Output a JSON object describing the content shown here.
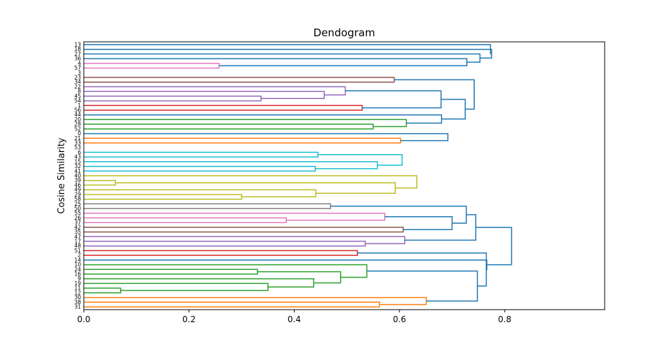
{
  "chart_data": {
    "type": "dendrogram",
    "orientation": "right",
    "title": "Dendogram",
    "xlabel": "",
    "ylabel": "Cosine Similarity",
    "xlim": [
      0,
      0.99
    ],
    "xticks": [
      0.0,
      0.2,
      0.4,
      0.6,
      0.8
    ],
    "xtick_labels": [
      "0.0",
      "0.2",
      "0.4",
      "0.6",
      "0.8"
    ],
    "grid": false,
    "leaves": [
      "13",
      "18",
      "27",
      "36",
      "4",
      "57",
      "3",
      "23",
      "34",
      "22",
      "8",
      "45",
      "54",
      "1",
      "56",
      "44",
      "20",
      "28",
      "52",
      "0",
      "21",
      "33",
      "53",
      "6",
      "43",
      "15",
      "32",
      "41",
      "40",
      "39",
      "46",
      "49",
      "29",
      "58",
      "25",
      "50",
      "55",
      "26",
      "37",
      "42",
      "35",
      "47",
      "17",
      "48",
      "51",
      "2",
      "14",
      "10",
      "24",
      "16",
      "9",
      "19",
      "11",
      "12",
      "30",
      "38",
      "31"
    ],
    "colors": {
      "above": "#1f77b4",
      "c1": "#ff7f0e",
      "c2": "#2ca02c",
      "c3": "#d62728",
      "c4": "#9467bd",
      "c5": "#8c564b",
      "c6": "#e377c2",
      "c7": "#7f7f7f",
      "c8": "#bcbd22",
      "c9": "#17becf"
    },
    "merges": [
      {
        "a": "L4",
        "b": "L5",
        "h": 0.257,
        "c": "c6",
        "id": "A"
      },
      {
        "a": "L3",
        "b": "A",
        "h": 0.728,
        "c": "above",
        "id": "B"
      },
      {
        "a": "L2",
        "b": "B",
        "h": 0.753,
        "c": "above",
        "id": "C"
      },
      {
        "a": "L1",
        "b": "C",
        "h": 0.775,
        "c": "above",
        "id": "D"
      },
      {
        "a": "L0",
        "b": "D",
        "h": 0.773,
        "c": "above",
        "id": "E"
      },
      {
        "a": "L7",
        "b": "L8",
        "h": 0.59,
        "c": "c5",
        "id": "F"
      },
      {
        "a": "L11",
        "b": "L12",
        "h": 0.337,
        "c": "c4",
        "id": "G"
      },
      {
        "a": "L10",
        "b": "G",
        "h": 0.457,
        "c": "c4",
        "id": "H"
      },
      {
        "a": "L9",
        "b": "H",
        "h": 0.497,
        "c": "c4",
        "id": "I"
      },
      {
        "a": "L13",
        "b": "L14",
        "h": 0.529,
        "c": "c3",
        "id": "J"
      },
      {
        "a": "I",
        "b": "J",
        "h": 0.679,
        "c": "above",
        "id": "K"
      },
      {
        "a": "L17",
        "b": "L18",
        "h": 0.55,
        "c": "c2",
        "id": "L"
      },
      {
        "a": "L16",
        "b": "L",
        "h": 0.613,
        "c": "c2",
        "id": "M"
      },
      {
        "a": "L15",
        "b": "M",
        "h": 0.68,
        "c": "above",
        "id": "N"
      },
      {
        "a": "K",
        "b": "N",
        "h": 0.725,
        "c": "above",
        "id": "O"
      },
      {
        "a": "F",
        "b": "O",
        "h": 0.742,
        "c": "above",
        "id": "P"
      },
      {
        "a": "L20",
        "b": "L21",
        "h": 0.602,
        "c": "c1",
        "id": "Q"
      },
      {
        "a": "L19",
        "b": "Q",
        "h": 0.692,
        "c": "above",
        "id": "R"
      },
      {
        "a": "L23",
        "b": "L24",
        "h": 0.445,
        "c": "c9",
        "id": "S"
      },
      {
        "a": "L26",
        "b": "L27",
        "h": 0.44,
        "c": "c9",
        "id": "T"
      },
      {
        "a": "L25",
        "b": "T",
        "h": 0.558,
        "c": "c9",
        "id": "U"
      },
      {
        "a": "S",
        "b": "U",
        "h": 0.605,
        "c": "c9",
        "id": "V"
      },
      {
        "a": "L29",
        "b": "L30",
        "h": 0.06,
        "c": "c8",
        "id": "W"
      },
      {
        "a": "L32",
        "b": "L33",
        "h": 0.3,
        "c": "c8",
        "id": "X"
      },
      {
        "a": "L31",
        "b": "X",
        "h": 0.441,
        "c": "c8",
        "id": "Y"
      },
      {
        "a": "W",
        "b": "Y",
        "h": 0.592,
        "c": "c8",
        "id": "Z"
      },
      {
        "a": "L28",
        "b": "Z",
        "h": 0.633,
        "c": "c8",
        "id": "AA"
      },
      {
        "a": "AA",
        "b": "L27x",
        "h": 0.665,
        "c": "above",
        "id": "AB"
      },
      {
        "a": "V",
        "b": "AB",
        "h": 0.7,
        "c": "above",
        "id": "AC"
      },
      {
        "a": "L22",
        "b": "AC",
        "h": 0.745,
        "c": "above",
        "id": "AD"
      },
      {
        "a": "R",
        "b": "AD",
        "h": 0.77,
        "c": "above",
        "id": "AE"
      },
      {
        "a": "P",
        "b": "AE",
        "h": 0.802,
        "c": "above",
        "id": "AF"
      },
      {
        "a": "L6",
        "b": "AF",
        "h": 0.855,
        "c": "above",
        "id": "AG"
      }
    ]
  }
}
